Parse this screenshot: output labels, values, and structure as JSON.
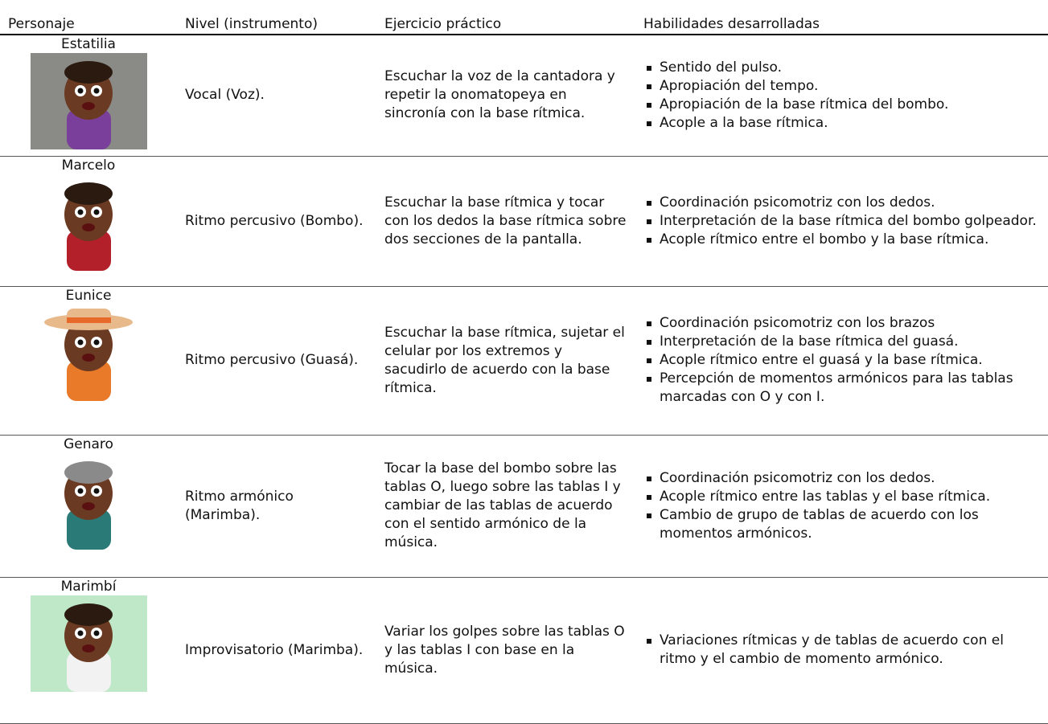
{
  "table": {
    "header": [
      "Personaje",
      "Nivel (instrumento)",
      "Ejercicio práctico",
      "Habilidades desarrolladas"
    ],
    "rows": [
      {
        "character": "Estatilia",
        "level": "Vocal (Voz).",
        "exercise": "Escuchar la voz de la cantadora y repetir la onomatopeya en sincronía con la base rítmica.",
        "skills": [
          "Sentido del pulso.",
          "Apropiación del tempo.",
          "Apropiación de la base rítmica del bombo.",
          "Acople a la base rítmica."
        ]
      },
      {
        "character": "Marcelo",
        "level": "Ritmo percusivo (Bombo).",
        "exercise": "Escuchar la base rítmica y tocar con los dedos la base rítmica sobre dos secciones de la pantalla.",
        "skills": [
          "Coordinación psicomotriz con los dedos.",
          "Interpretación de la base rítmica del bombo golpeador.",
          "Acople rítmico entre el bombo y la base rítmica."
        ]
      },
      {
        "character": "Eunice",
        "level": "Ritmo percusivo (Guasá).",
        "exercise": "Escuchar la base rítmica, sujetar el celular por los extremos y sacudirlo de acuerdo con la base rítmica.",
        "skills": [
          "Coordinación psicomotriz con los brazos",
          "Interpretación de la base rítmica del guasá.",
          "Acople rítmico entre el guasá y la base rítmica.",
          "Percepción de momentos armónicos para las tablas marcadas con O y con I."
        ]
      },
      {
        "character": "Genaro",
        "level": "Ritmo armónico (Marimba).",
        "exercise": "Tocar la base del bombo sobre las tablas O, luego sobre las tablas I y cambiar de las tablas de acuerdo con el sentido armónico de la música.",
        "skills": [
          "Coordinación psicomotriz con los dedos.",
          "Acople rítmico entre las tablas y el base rítmica.",
          "Cambio de grupo de tablas de acuerdo con los momentos armónicos."
        ]
      },
      {
        "character": "Marimbí",
        "level": "Improvisatorio (Marimba).",
        "exercise": "Variar los golpes sobre las tablas O y las tablas I con base en la música.",
        "skills": [
          "Variaciones rítmicas y de tablas de acuerdo con el ritmo y el cambio de momento armónico."
        ]
      }
    ]
  }
}
